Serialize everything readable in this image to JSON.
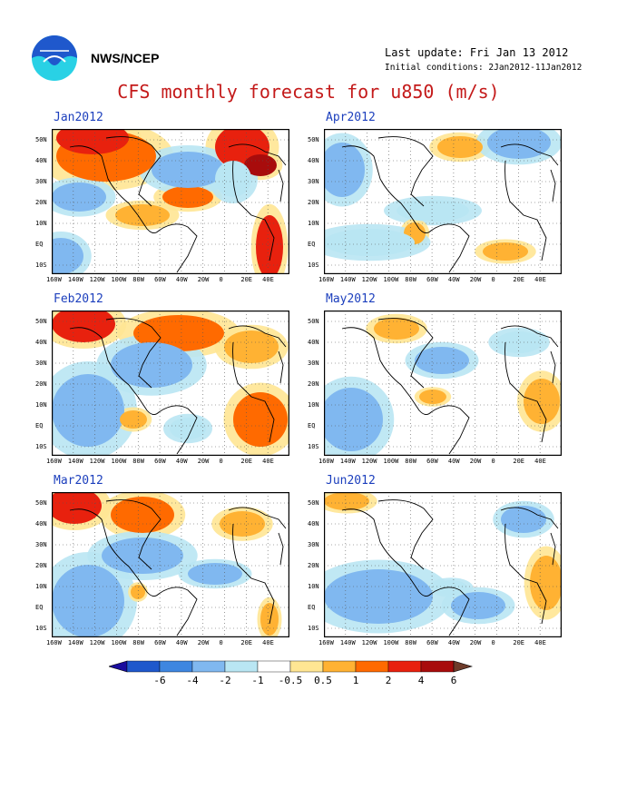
{
  "header": {
    "org": "NWS/NCEP",
    "last_update": "Last update: Fri Jan 13 2012",
    "initial_conditions": "Initial conditions: 2Jan2012-11Jan2012",
    "title": "CFS monthly forecast for u850 (m/s)"
  },
  "panels": [
    {
      "title": "Jan2012"
    },
    {
      "title": "Feb2012"
    },
    {
      "title": "Mar2012"
    },
    {
      "title": "Apr2012"
    },
    {
      "title": "May2012"
    },
    {
      "title": "Jun2012"
    }
  ],
  "axes": {
    "lat_labels": [
      "50N",
      "40N",
      "30N",
      "20N",
      "10N",
      "EQ",
      "10S"
    ],
    "lon_labels": [
      "160W",
      "140W",
      "120W",
      "100W",
      "80W",
      "60W",
      "40W",
      "20W",
      "0",
      "20E",
      "40E"
    ]
  },
  "colorbar": {
    "labels": [
      "-6",
      "-4",
      "-2",
      "-1",
      "-0.5",
      "0.5",
      "1",
      "2",
      "4",
      "6"
    ],
    "colors": [
      "#1a0d9e",
      "#1f58cc",
      "#3e86e0",
      "#80b8f0",
      "#b9e6f3",
      "#ffffff",
      "#ffe693",
      "#ffb233",
      "#ff6a00",
      "#e8210e",
      "#a80c0c",
      "#6e3b2a"
    ]
  },
  "colors": {
    "title": "#c41a1a",
    "panel_title": "#1c3fbd",
    "logo_blue": "#2f7fdb",
    "logo_cyan": "#29d1e5"
  }
}
